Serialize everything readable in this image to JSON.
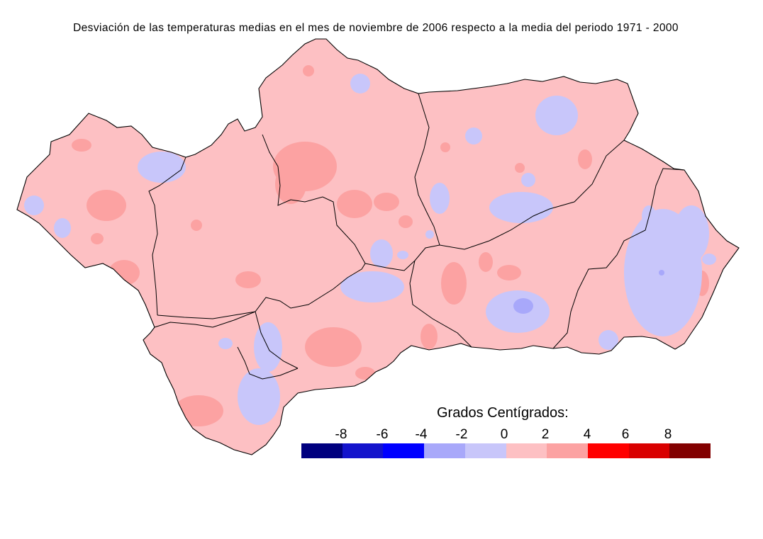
{
  "title": "Desviación de las temperaturas medias en el mes de noviembre de 2006 respecto a la media del periodo 1971 - 2000",
  "legend": {
    "title": "Grados Centígrados:",
    "ticks": [
      "-8",
      "-6",
      "-4",
      "-2",
      "0",
      "2",
      "4",
      "6",
      "8"
    ],
    "colors": [
      "#00007f",
      "#1414cc",
      "#0000ff",
      "#a8a8fa",
      "#c8c6fa",
      "#fdc0c3",
      "#fca2a2",
      "#ff0000",
      "#d90000",
      "#820000"
    ]
  },
  "map": {
    "region": "Andalucía",
    "dominant_class": "0 a 2",
    "colors": {
      "base": "#fdc0c3",
      "warm": "#fca2a2",
      "cool": "#c8c6fa",
      "cold": "#a8a8fa",
      "border": "#000000"
    }
  }
}
